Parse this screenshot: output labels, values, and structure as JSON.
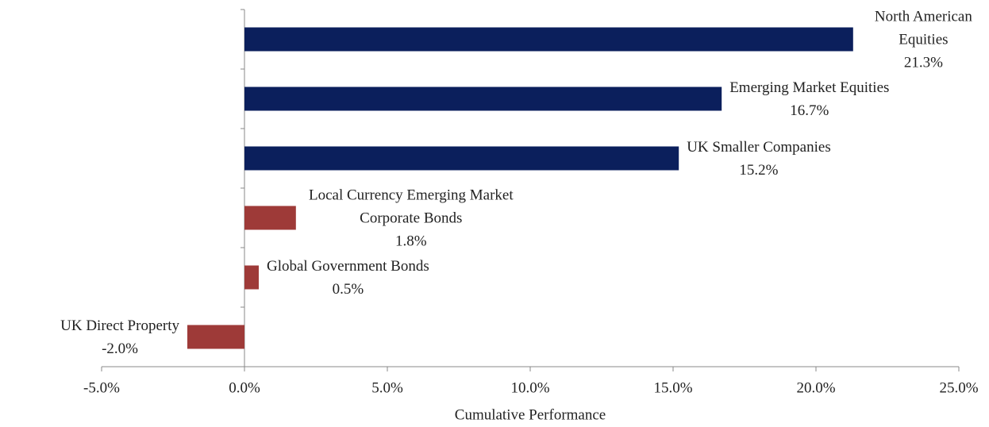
{
  "chart_data": {
    "type": "hbar",
    "x_label": "Cumulative Performance",
    "categories": [
      "North American Equities",
      "Emerging Market Equities",
      "UK Smaller Companies",
      "Local Currency Emerging Market Corporate Bonds",
      "Global Government Bonds",
      "UK Direct Property"
    ],
    "values": [
      21.3,
      16.7,
      15.2,
      1.8,
      0.5,
      -2.0
    ],
    "value_labels": [
      "21.3%",
      "16.7%",
      "15.2%",
      "1.8%",
      "0.5%",
      "-2.0%"
    ],
    "colors": [
      "#0b1f5c",
      "#0b1f5c",
      "#0b1f5c",
      "#9e3a38",
      "#9e3a38",
      "#9e3a38"
    ],
    "xlim": [
      -5,
      25
    ],
    "xticks": [
      {
        "value": -5,
        "label": "-5.0%"
      },
      {
        "value": 0,
        "label": "0.0%"
      },
      {
        "value": 5,
        "label": "5.0%"
      },
      {
        "value": 10,
        "label": "10.0%"
      },
      {
        "value": 15,
        "label": "15.0%"
      },
      {
        "value": 20,
        "label": "20.0%"
      },
      {
        "value": 25,
        "label": "25.0%"
      }
    ],
    "grid": false
  }
}
